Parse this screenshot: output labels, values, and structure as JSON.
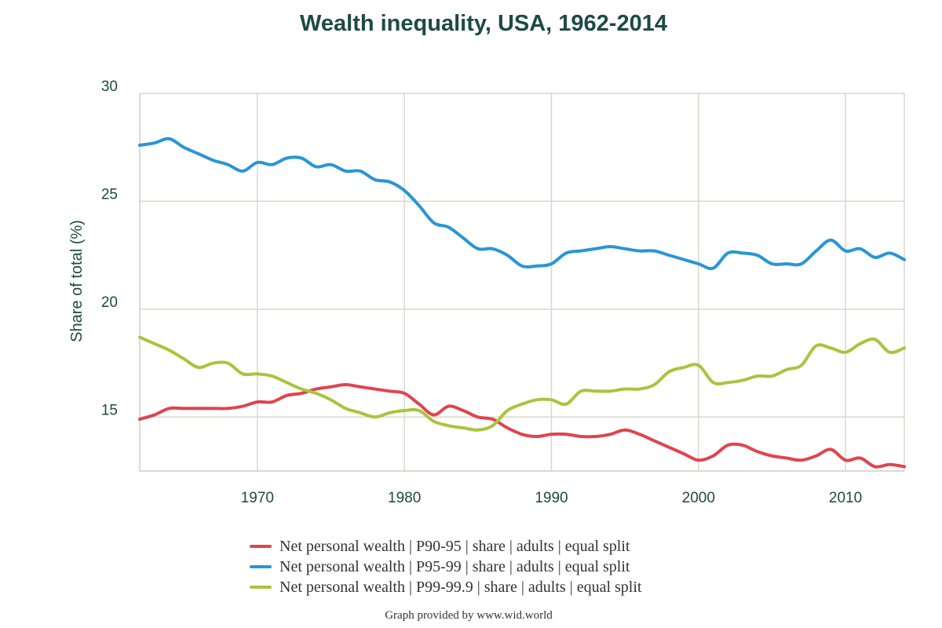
{
  "chart_data": {
    "type": "line",
    "title": "Wealth inequality, USA, 1962-2014",
    "ylabel": "Share of total (%)",
    "xlabel": "",
    "xlim": [
      1962,
      2014
    ],
    "ylim": [
      12.5,
      30
    ],
    "x_ticks": [
      1970,
      1980,
      1990,
      2000,
      2010
    ],
    "y_ticks": [
      15,
      20,
      25,
      30
    ],
    "grid": true,
    "legend_position": "bottom",
    "x": [
      1962,
      1963,
      1964,
      1965,
      1966,
      1967,
      1968,
      1969,
      1970,
      1971,
      1972,
      1973,
      1974,
      1975,
      1976,
      1977,
      1978,
      1979,
      1980,
      1981,
      1982,
      1983,
      1984,
      1985,
      1986,
      1987,
      1988,
      1989,
      1990,
      1991,
      1992,
      1993,
      1994,
      1995,
      1996,
      1997,
      1998,
      1999,
      2000,
      2001,
      2002,
      2003,
      2004,
      2005,
      2006,
      2007,
      2008,
      2009,
      2010,
      2011,
      2012,
      2013,
      2014
    ],
    "series": [
      {
        "name": "Net personal wealth | P90-95 | share | adults | equal split",
        "color": "#e0444f",
        "values": [
          14.9,
          15.1,
          15.4,
          15.4,
          15.4,
          15.4,
          15.4,
          15.5,
          15.7,
          15.7,
          16.0,
          16.1,
          16.3,
          16.4,
          16.5,
          16.4,
          16.3,
          16.2,
          16.1,
          15.6,
          15.1,
          15.5,
          15.3,
          15.0,
          14.9,
          14.5,
          14.2,
          14.1,
          14.2,
          14.2,
          14.1,
          14.1,
          14.2,
          14.4,
          14.2,
          13.9,
          13.6,
          13.3,
          13.0,
          13.2,
          13.7,
          13.7,
          13.4,
          13.2,
          13.1,
          13.0,
          13.2,
          13.5,
          13.0,
          13.1,
          12.7,
          12.8,
          12.7
        ]
      },
      {
        "name": "Net personal wealth | P95-99 | share | adults | equal split",
        "color": "#2896d6",
        "values": [
          27.6,
          27.7,
          27.9,
          27.5,
          27.2,
          26.9,
          26.7,
          26.4,
          26.8,
          26.7,
          27.0,
          27.0,
          26.6,
          26.7,
          26.4,
          26.4,
          26.0,
          25.9,
          25.5,
          24.8,
          24.0,
          23.8,
          23.3,
          22.8,
          22.8,
          22.5,
          22.0,
          22.0,
          22.1,
          22.6,
          22.7,
          22.8,
          22.9,
          22.8,
          22.7,
          22.7,
          22.5,
          22.3,
          22.1,
          21.9,
          22.6,
          22.6,
          22.5,
          22.1,
          22.1,
          22.1,
          22.7,
          23.2,
          22.7,
          22.8,
          22.4,
          22.6,
          22.3
        ]
      },
      {
        "name": "Net personal wealth | P99-99.9 | share | adults | equal split",
        "color": "#aac43c",
        "values": [
          18.7,
          18.4,
          18.1,
          17.7,
          17.3,
          17.5,
          17.5,
          17.0,
          17.0,
          16.9,
          16.6,
          16.3,
          16.1,
          15.8,
          15.4,
          15.2,
          15.0,
          15.2,
          15.3,
          15.3,
          14.8,
          14.6,
          14.5,
          14.4,
          14.6,
          15.3,
          15.6,
          15.8,
          15.8,
          15.6,
          16.2,
          16.2,
          16.2,
          16.3,
          16.3,
          16.5,
          17.1,
          17.3,
          17.4,
          16.6,
          16.6,
          16.7,
          16.9,
          16.9,
          17.2,
          17.4,
          18.3,
          18.2,
          18.0,
          18.4,
          18.6,
          18.0,
          18.2
        ]
      }
    ]
  },
  "credit": "Graph provided by www.wid.world"
}
